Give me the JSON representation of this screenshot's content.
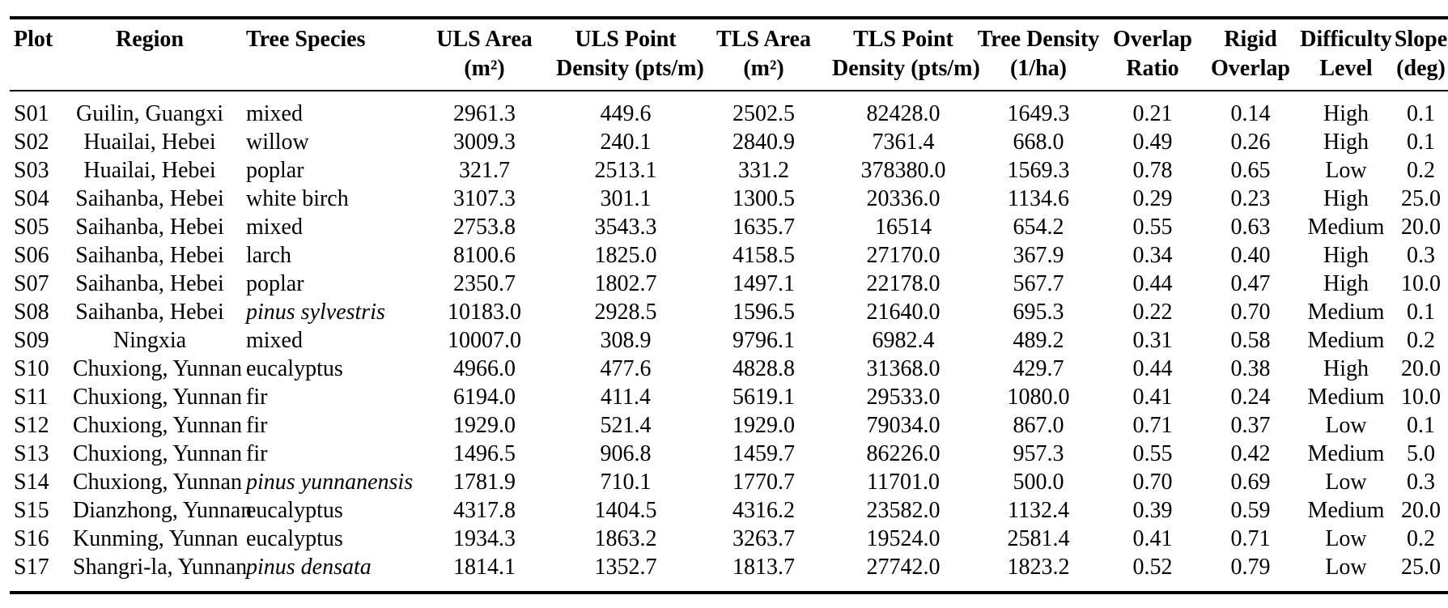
{
  "page": {
    "background": "#ffffff",
    "text_color": "#000000",
    "rule_color": "#000000"
  },
  "table": {
    "columns": [
      {
        "key": "plot",
        "align": "left",
        "label_line1": "Plot",
        "label_line2": ""
      },
      {
        "key": "region",
        "align": "center",
        "label_line1": "Region",
        "label_line2": ""
      },
      {
        "key": "species",
        "align": "left",
        "label_line1": "Tree Species",
        "label_line2": ""
      },
      {
        "key": "uls_area",
        "align": "center",
        "label_line1": "ULS Area",
        "label_line2": "(m²)"
      },
      {
        "key": "uls_density",
        "align": "center",
        "label_line1": "ULS Point",
        "label_line2": "Density (pts/m)"
      },
      {
        "key": "tls_area",
        "align": "center",
        "label_line1": "TLS Area",
        "label_line2": "(m²)"
      },
      {
        "key": "tls_density",
        "align": "center",
        "label_line1": "TLS Point",
        "label_line2": "Density (pts/m)"
      },
      {
        "key": "tree_density",
        "align": "center",
        "label_line1": "Tree Density",
        "label_line2": "(1/ha)"
      },
      {
        "key": "overlap_ratio",
        "align": "center",
        "label_line1": "Overlap",
        "label_line2": "Ratio"
      },
      {
        "key": "rigid_overlap",
        "align": "center",
        "label_line1": "Rigid",
        "label_line2": "Overlap"
      },
      {
        "key": "difficulty",
        "align": "center",
        "label_line1": "Difficulty",
        "label_line2": "Level"
      },
      {
        "key": "slope",
        "align": "center",
        "label_line1": "Slope",
        "label_line2": "(deg)"
      }
    ],
    "rows": [
      {
        "plot": "S01",
        "region": "Guilin, Guangxi",
        "species": "mixed",
        "species_italic": false,
        "uls_area": "2961.3",
        "uls_density": "449.6",
        "tls_area": "2502.5",
        "tls_density": "82428.0",
        "tree_density": "1649.3",
        "overlap_ratio": "0.21",
        "rigid_overlap": "0.14",
        "difficulty": "High",
        "slope": "0.1"
      },
      {
        "plot": "S02",
        "region": "Huailai, Hebei",
        "species": "willow",
        "species_italic": false,
        "uls_area": "3009.3",
        "uls_density": "240.1",
        "tls_area": "2840.9",
        "tls_density": "7361.4",
        "tree_density": "668.0",
        "overlap_ratio": "0.49",
        "rigid_overlap": "0.26",
        "difficulty": "High",
        "slope": "0.1"
      },
      {
        "plot": "S03",
        "region": "Huailai, Hebei",
        "species": "poplar",
        "species_italic": false,
        "uls_area": "321.7",
        "uls_density": "2513.1",
        "tls_area": "331.2",
        "tls_density": "378380.0",
        "tree_density": "1569.3",
        "overlap_ratio": "0.78",
        "rigid_overlap": "0.65",
        "difficulty": "Low",
        "slope": "0.2"
      },
      {
        "plot": "S04",
        "region": "Saihanba, Hebei",
        "species": "white birch",
        "species_italic": false,
        "uls_area": "3107.3",
        "uls_density": "301.1",
        "tls_area": "1300.5",
        "tls_density": "20336.0",
        "tree_density": "1134.6",
        "overlap_ratio": "0.29",
        "rigid_overlap": "0.23",
        "difficulty": "High",
        "slope": "25.0"
      },
      {
        "plot": "S05",
        "region": "Saihanba, Hebei",
        "species": "mixed",
        "species_italic": false,
        "uls_area": "2753.8",
        "uls_density": "3543.3",
        "tls_area": "1635.7",
        "tls_density": "16514",
        "tree_density": "654.2",
        "overlap_ratio": "0.55",
        "rigid_overlap": "0.63",
        "difficulty": "Medium",
        "slope": "20.0"
      },
      {
        "plot": "S06",
        "region": "Saihanba, Hebei",
        "species": "larch",
        "species_italic": false,
        "uls_area": "8100.6",
        "uls_density": "1825.0",
        "tls_area": "4158.5",
        "tls_density": "27170.0",
        "tree_density": "367.9",
        "overlap_ratio": "0.34",
        "rigid_overlap": "0.40",
        "difficulty": "High",
        "slope": "0.3"
      },
      {
        "plot": "S07",
        "region": "Saihanba, Hebei",
        "species": "poplar",
        "species_italic": false,
        "uls_area": "2350.7",
        "uls_density": "1802.7",
        "tls_area": "1497.1",
        "tls_density": "22178.0",
        "tree_density": "567.7",
        "overlap_ratio": "0.44",
        "rigid_overlap": "0.47",
        "difficulty": "High",
        "slope": "10.0"
      },
      {
        "plot": "S08",
        "region": "Saihanba, Hebei",
        "species": "pinus sylvestris",
        "species_italic": true,
        "uls_area": "10183.0",
        "uls_density": "2928.5",
        "tls_area": "1596.5",
        "tls_density": "21640.0",
        "tree_density": "695.3",
        "overlap_ratio": "0.22",
        "rigid_overlap": "0.70",
        "difficulty": "Medium",
        "slope": "0.1"
      },
      {
        "plot": "S09",
        "region": "Ningxia",
        "species": "mixed",
        "species_italic": false,
        "uls_area": "10007.0",
        "uls_density": "308.9",
        "tls_area": "9796.1",
        "tls_density": "6982.4",
        "tree_density": "489.2",
        "overlap_ratio": "0.31",
        "rigid_overlap": "0.58",
        "difficulty": "Medium",
        "slope": "0.2"
      },
      {
        "plot": "S10",
        "region": "Chuxiong, Yunnan",
        "species": "eucalyptus",
        "species_italic": false,
        "uls_area": "4966.0",
        "uls_density": "477.6",
        "tls_area": "4828.8",
        "tls_density": "31368.0",
        "tree_density": "429.7",
        "overlap_ratio": "0.44",
        "rigid_overlap": "0.38",
        "difficulty": "High",
        "slope": "20.0"
      },
      {
        "plot": "S11",
        "region": "Chuxiong, Yunnan",
        "species": "fir",
        "species_italic": false,
        "uls_area": "6194.0",
        "uls_density": "411.4",
        "tls_area": "5619.1",
        "tls_density": "29533.0",
        "tree_density": "1080.0",
        "overlap_ratio": "0.41",
        "rigid_overlap": "0.24",
        "difficulty": "Medium",
        "slope": "10.0"
      },
      {
        "plot": "S12",
        "region": "Chuxiong, Yunnan",
        "species": "fir",
        "species_italic": false,
        "uls_area": "1929.0",
        "uls_density": "521.4",
        "tls_area": "1929.0",
        "tls_density": "79034.0",
        "tree_density": "867.0",
        "overlap_ratio": "0.71",
        "rigid_overlap": "0.37",
        "difficulty": "Low",
        "slope": "0.1"
      },
      {
        "plot": "S13",
        "region": "Chuxiong, Yunnan",
        "species": "fir",
        "species_italic": false,
        "uls_area": "1496.5",
        "uls_density": "906.8",
        "tls_area": "1459.7",
        "tls_density": "86226.0",
        "tree_density": "957.3",
        "overlap_ratio": "0.55",
        "rigid_overlap": "0.42",
        "difficulty": "Medium",
        "slope": "5.0"
      },
      {
        "plot": "S14",
        "region": "Chuxiong, Yunnan",
        "species": "pinus yunnanensis",
        "species_italic": true,
        "uls_area": "1781.9",
        "uls_density": "710.1",
        "tls_area": "1770.7",
        "tls_density": "11701.0",
        "tree_density": "500.0",
        "overlap_ratio": "0.70",
        "rigid_overlap": "0.69",
        "difficulty": "Low",
        "slope": "0.3"
      },
      {
        "plot": "S15",
        "region": "Dianzhong, Yunnan",
        "species": "eucalyptus",
        "species_italic": false,
        "uls_area": "4317.8",
        "uls_density": "1404.5",
        "tls_area": "4316.2",
        "tls_density": "23582.0",
        "tree_density": "1132.4",
        "overlap_ratio": "0.39",
        "rigid_overlap": "0.59",
        "difficulty": "Medium",
        "slope": "20.0"
      },
      {
        "plot": "S16",
        "region": "Kunming, Yunnan",
        "species": "eucalyptus",
        "species_italic": false,
        "uls_area": "1934.3",
        "uls_density": "1863.2",
        "tls_area": "3263.7",
        "tls_density": "19524.0",
        "tree_density": "2581.4",
        "overlap_ratio": "0.41",
        "rigid_overlap": "0.71",
        "difficulty": "Low",
        "slope": "0.2"
      },
      {
        "plot": "S17",
        "region": "Shangri-la, Yunnan",
        "species": "pinus densata",
        "species_italic": true,
        "uls_area": "1814.1",
        "uls_density": "1352.7",
        "tls_area": "1813.7",
        "tls_density": "27742.0",
        "tree_density": "1823.2",
        "overlap_ratio": "0.52",
        "rigid_overlap": "0.79",
        "difficulty": "Low",
        "slope": "25.0"
      }
    ]
  }
}
